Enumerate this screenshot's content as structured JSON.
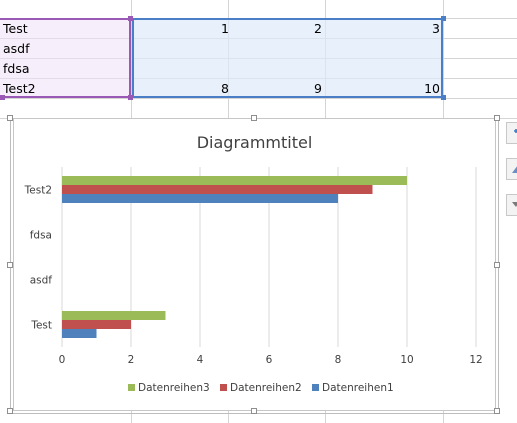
{
  "sheet": {
    "rows": [
      {
        "label": "Test",
        "c1": "1",
        "c2": "2",
        "c3": "3"
      },
      {
        "label": "asdf",
        "c1": "",
        "c2": "",
        "c3": ""
      },
      {
        "label": "fdsa",
        "c1": "",
        "c2": "",
        "c3": ""
      },
      {
        "label": "Test2",
        "c1": "8",
        "c2": "9",
        "c3": "10"
      }
    ]
  },
  "colors": {
    "series1": "#4f81bd",
    "series2": "#c0504d",
    "series3": "#9bbb59",
    "grid": "#d9d9d9",
    "selection_labels": "#9b59b6",
    "selection_values": "#4a7ec6"
  },
  "chart_data": {
    "type": "bar",
    "orientation": "horizontal",
    "title": "Diagrammtitel",
    "categories": [
      "Test",
      "asdf",
      "fdsa",
      "Test2"
    ],
    "series": [
      {
        "name": "Datenreihen1",
        "values": [
          1,
          0,
          0,
          8
        ]
      },
      {
        "name": "Datenreihen2",
        "values": [
          2,
          0,
          0,
          9
        ]
      },
      {
        "name": "Datenreihen3",
        "values": [
          3,
          0,
          0,
          10
        ]
      }
    ],
    "xlim": [
      0,
      12
    ],
    "xticks": [
      "0",
      "2",
      "4",
      "6",
      "8",
      "10",
      "12"
    ],
    "grid": true,
    "legend": "bottom",
    "legend_order": [
      "Datenreihen3",
      "Datenreihen2",
      "Datenreihen1"
    ]
  }
}
